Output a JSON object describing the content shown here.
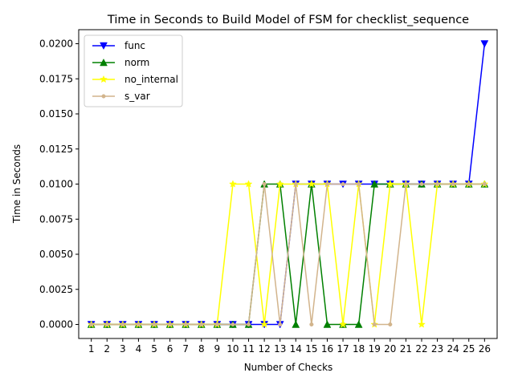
{
  "chart_data": {
    "type": "line",
    "title": "Time in Seconds to Build Model of FSM for checklist_sequence",
    "xlabel": "Number of Checks",
    "ylabel": "Time in Seconds",
    "categories": [
      "1",
      "2",
      "3",
      "4",
      "5",
      "6",
      "7",
      "8",
      "9",
      "10",
      "11",
      "12",
      "13",
      "14",
      "15",
      "16",
      "17",
      "18",
      "19",
      "20",
      "21",
      "22",
      "23",
      "24",
      "25",
      "26"
    ],
    "x": [
      1,
      2,
      3,
      4,
      5,
      6,
      7,
      8,
      9,
      10,
      11,
      12,
      13,
      14,
      15,
      16,
      17,
      18,
      19,
      20,
      21,
      22,
      23,
      24,
      25,
      26
    ],
    "xlim": [
      0.2,
      26.8
    ],
    "ylim": [
      -0.001,
      0.021
    ],
    "yticks": [
      "0.0000",
      "0.0025",
      "0.0050",
      "0.0075",
      "0.0100",
      "0.0125",
      "0.0150",
      "0.0175",
      "0.0200"
    ],
    "grid": false,
    "legend_position": "top-left",
    "series": [
      {
        "name": "func",
        "color": "#0000ff",
        "marker": "triangle-down",
        "values": [
          0,
          0,
          0,
          0,
          0,
          0,
          0,
          0,
          0,
          0,
          0,
          0,
          0,
          0.01,
          0.01,
          0.01,
          0.01,
          0.01,
          0.01,
          0.01,
          0.01,
          0.01,
          0.01,
          0.01,
          0.01,
          0.02
        ]
      },
      {
        "name": "norm",
        "color": "#008000",
        "marker": "triangle-up",
        "values": [
          0,
          0,
          0,
          0,
          0,
          0,
          0,
          0,
          0,
          0,
          0,
          0.01,
          0.01,
          0,
          0.01,
          0,
          0,
          0,
          0.01,
          0.01,
          0.01,
          0.01,
          0.01,
          0.01,
          0.01,
          0.01
        ]
      },
      {
        "name": "no_internal",
        "color": "#ffff00",
        "marker": "star",
        "values": [
          0,
          0,
          0,
          0,
          0,
          0,
          0,
          0,
          0,
          0.01,
          0.01,
          0,
          0.01,
          0.01,
          0.01,
          0.01,
          0,
          0.01,
          0,
          0.01,
          0.01,
          0,
          0.01,
          0.01,
          0.01,
          0.01
        ]
      },
      {
        "name": "s_var",
        "color": "#d2b48c",
        "marker": "dot",
        "values": [
          0,
          0,
          0,
          0,
          0,
          0,
          0,
          0,
          0,
          0,
          0,
          0.01,
          0,
          0.01,
          0,
          0.01,
          0.01,
          0.01,
          0,
          0,
          0.01,
          0.01,
          0.01,
          0.01,
          0.01,
          0.01
        ]
      }
    ]
  }
}
